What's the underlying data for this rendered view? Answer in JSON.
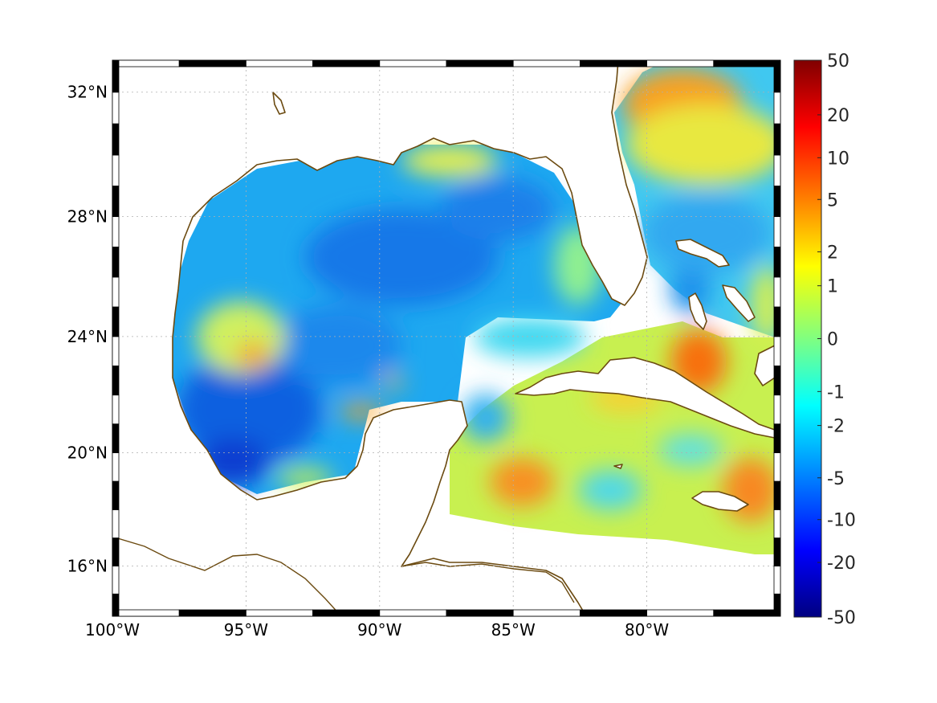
{
  "figure": {
    "background": "#ffffff",
    "land_color": "#ffffff",
    "coast_color": "#6b4a10"
  },
  "map": {
    "projection": "mercator",
    "lon_range": [
      -100,
      -75
    ],
    "lat_range": [
      14.2,
      33.0
    ],
    "lon_ticks": [
      {
        "value": -100,
        "label": "100°W"
      },
      {
        "value": -95,
        "label": "95°W"
      },
      {
        "value": -90,
        "label": "90°W"
      },
      {
        "value": -85,
        "label": "85°W"
      },
      {
        "value": -80,
        "label": "80°W"
      }
    ],
    "lat_ticks": [
      {
        "value": 16,
        "label": "16°N"
      },
      {
        "value": 20,
        "label": "20°N"
      },
      {
        "value": 24,
        "label": "24°N"
      },
      {
        "value": 28,
        "label": "28°N"
      },
      {
        "value": 32,
        "label": "32°N"
      }
    ],
    "grid": true,
    "frame_style": "alternating black/white bars"
  },
  "colorbar": {
    "type": "jet",
    "orientation": "vertical",
    "placement": "right",
    "ticks": [
      "50",
      "20",
      "10",
      "5",
      "2",
      "1",
      "0",
      "-1",
      "-2",
      "-5",
      "-10",
      "-20",
      "-50"
    ]
  }
}
